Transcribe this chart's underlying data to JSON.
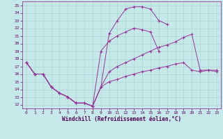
{
  "background_color": "#c5e8e8",
  "grid_color": "#aad4d4",
  "line_color": "#993399",
  "xlabel": "Windchill (Refroidissement éolien,°C)",
  "xlim": [
    -0.5,
    23.5
  ],
  "ylim": [
    11.5,
    25.5
  ],
  "xticks": [
    0,
    1,
    2,
    3,
    4,
    5,
    6,
    7,
    8,
    9,
    10,
    11,
    12,
    13,
    14,
    15,
    16,
    17,
    18,
    19,
    20,
    21,
    22,
    23
  ],
  "yticks": [
    12,
    13,
    14,
    15,
    16,
    17,
    18,
    19,
    20,
    21,
    22,
    23,
    24,
    25
  ],
  "curves": [
    [
      17.5,
      16.0,
      16.0,
      14.3,
      13.5,
      13.0,
      12.2,
      12.2,
      11.8,
      14.3,
      21.3,
      23.0,
      24.5,
      24.8,
      24.8,
      24.5,
      23.0,
      22.5,
      null,
      null,
      null,
      null,
      null,
      null
    ],
    [
      17.5,
      16.0,
      16.0,
      14.3,
      13.5,
      13.0,
      12.2,
      12.2,
      11.8,
      19.0,
      20.3,
      21.0,
      21.5,
      22.0,
      21.8,
      21.5,
      19.0,
      null,
      null,
      null,
      null,
      null,
      null,
      null
    ],
    [
      17.5,
      16.0,
      16.0,
      14.3,
      13.5,
      13.0,
      12.2,
      12.2,
      11.8,
      14.3,
      16.3,
      17.0,
      17.5,
      18.0,
      18.5,
      19.0,
      19.5,
      19.8,
      20.2,
      20.8,
      21.2,
      16.5,
      16.5,
      16.5
    ],
    [
      17.5,
      16.0,
      16.0,
      14.3,
      13.5,
      13.0,
      12.2,
      12.2,
      11.8,
      14.3,
      15.0,
      15.3,
      15.7,
      16.0,
      16.3,
      16.5,
      16.8,
      17.0,
      17.3,
      17.5,
      16.5,
      16.3,
      16.5,
      16.3
    ]
  ]
}
